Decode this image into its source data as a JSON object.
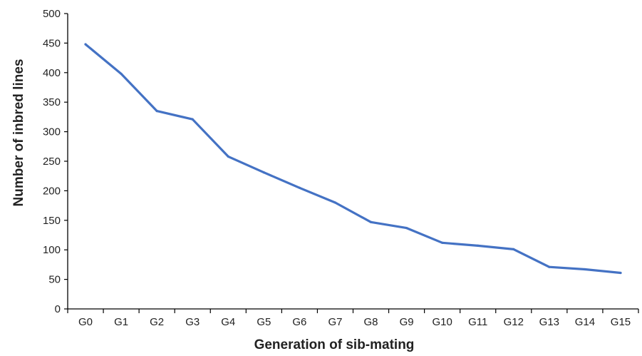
{
  "chart_data": {
    "type": "line",
    "title": "",
    "xlabel": "Generation of sib-mating",
    "ylabel": "Number of inbred lines",
    "categories": [
      "G0",
      "G1",
      "G2",
      "G3",
      "G4",
      "G5",
      "G6",
      "G7",
      "G8",
      "G9",
      "G10",
      "G11",
      "G12",
      "G13",
      "G14",
      "G15"
    ],
    "series": [
      {
        "values": [
          448,
          398,
          335,
          321,
          258,
          231,
          205,
          180,
          147,
          137,
          112,
          107,
          101,
          71,
          67,
          61
        ]
      }
    ],
    "ylim": [
      0,
      500
    ],
    "yticks": [
      "0",
      "50",
      "100",
      "150",
      "200",
      "250",
      "300",
      "350",
      "400",
      "450",
      "500"
    ],
    "grid": false,
    "legend": "none",
    "colors": {
      "line": "#4472C4",
      "axis": "#000000"
    }
  }
}
